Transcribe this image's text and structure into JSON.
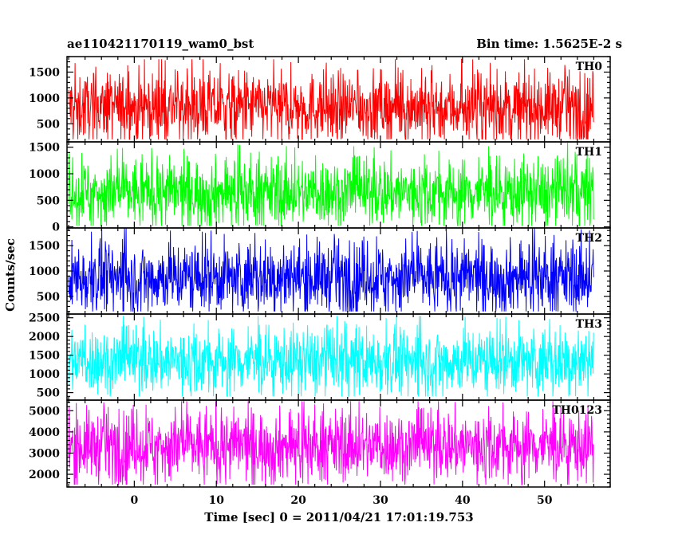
{
  "header": {
    "left_title": "ae110421170119_wam0_bst",
    "right_title": "Bin time: 1.5625E-2 s"
  },
  "chart_data": {
    "type": "line",
    "x_axis": {
      "label": "Time [sec] 0 = 2011/04/21 17:01:19.753",
      "range": [
        -8.2,
        58.0
      ],
      "ticks": [
        0,
        10,
        20,
        30,
        40,
        50
      ],
      "tick_labels": [
        "0",
        "10",
        "20",
        "30",
        "40",
        "50"
      ],
      "data_range": [
        -8.0,
        56.0
      ],
      "bin_time": 0.015625
    },
    "y_axis_label": "Counts/sec",
    "grid": false,
    "panels": [
      {
        "name": "TH0",
        "color": "#ff0000",
        "ylim": [
          150,
          1800
        ],
        "yticks": [
          500,
          1000,
          1500
        ],
        "ytick_labels": [
          "500",
          "1000",
          "1500"
        ],
        "typical_range": [
          300,
          1500
        ],
        "mean": 820,
        "min": 200,
        "max": 1750
      },
      {
        "name": "TH1",
        "color": "#00ff00",
        "ylim": [
          -20,
          1600
        ],
        "yticks": [
          0,
          500,
          1000,
          1500
        ],
        "ytick_labels": [
          "0",
          "500",
          "1000",
          "1500"
        ],
        "typical_range": [
          150,
          1300
        ],
        "mean": 650,
        "min": 20,
        "max": 1600
      },
      {
        "name": "TH2",
        "color": "#0000ff",
        "ylim": [
          150,
          1850
        ],
        "yticks": [
          500,
          1000,
          1500
        ],
        "ytick_labels": [
          "500",
          "1000",
          "1500"
        ],
        "typical_range": [
          300,
          1550
        ],
        "mean": 880,
        "min": 200,
        "max": 1850
      },
      {
        "name": "TH3",
        "color": "#00ffff",
        "ylim": [
          300,
          2600
        ],
        "yticks": [
          500,
          1000,
          1500,
          2000,
          2500
        ],
        "ytick_labels": [
          "500",
          "1000",
          "1500",
          "2000",
          "2500"
        ],
        "typical_range": [
          600,
          2200
        ],
        "mean": 1350,
        "min": 400,
        "max": 2550
      },
      {
        "name": "TH0123",
        "color": "#ff00ff",
        "ylim": [
          1400,
          5500
        ],
        "yticks": [
          2000,
          3000,
          4000,
          5000
        ],
        "ytick_labels": [
          "2000",
          "3000",
          "4000",
          "5000"
        ],
        "typical_range": [
          1900,
          4900
        ],
        "mean": 3350,
        "min": 1500,
        "max": 5450
      }
    ]
  }
}
